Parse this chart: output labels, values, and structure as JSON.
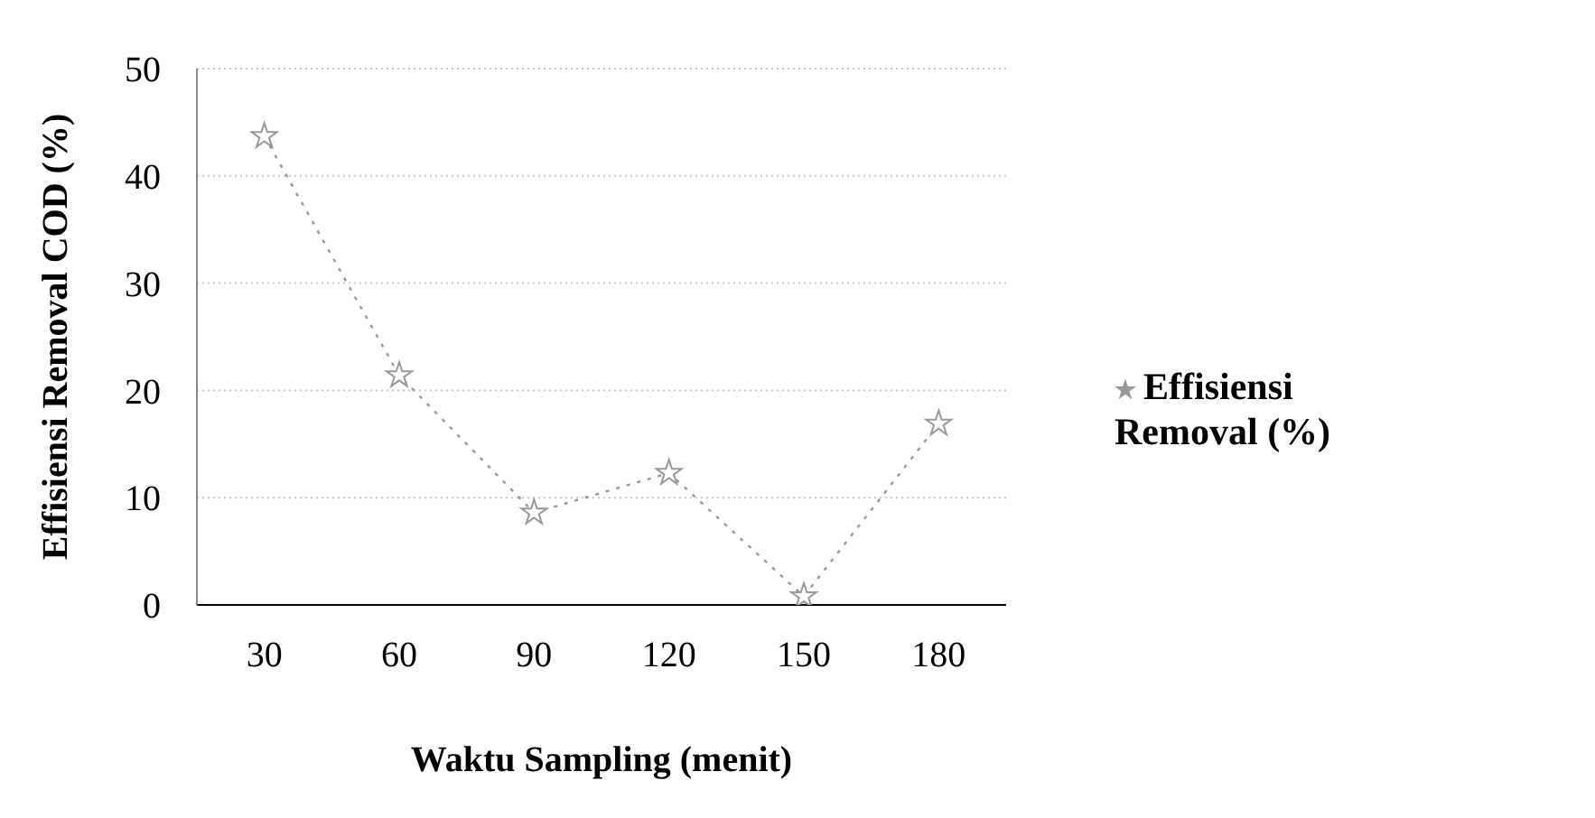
{
  "chart_data": {
    "type": "line",
    "xlabel": "Waktu Sampling (menit)",
    "ylabel": "Effisiensi Removal COD (%)",
    "categories": [
      "30",
      "60",
      "90",
      "120",
      "150",
      "180"
    ],
    "series": [
      {
        "name": "Effisiensi Removal (%)",
        "color": "#999999",
        "values": [
          43.7,
          21.4,
          8.6,
          12.3,
          0.8,
          16.9
        ]
      }
    ],
    "ylim": [
      0,
      50
    ],
    "yticks": [
      0,
      10,
      20,
      30,
      40,
      50
    ],
    "grid": "y",
    "legend": "right",
    "marker": "star",
    "line_style": "dotted"
  }
}
